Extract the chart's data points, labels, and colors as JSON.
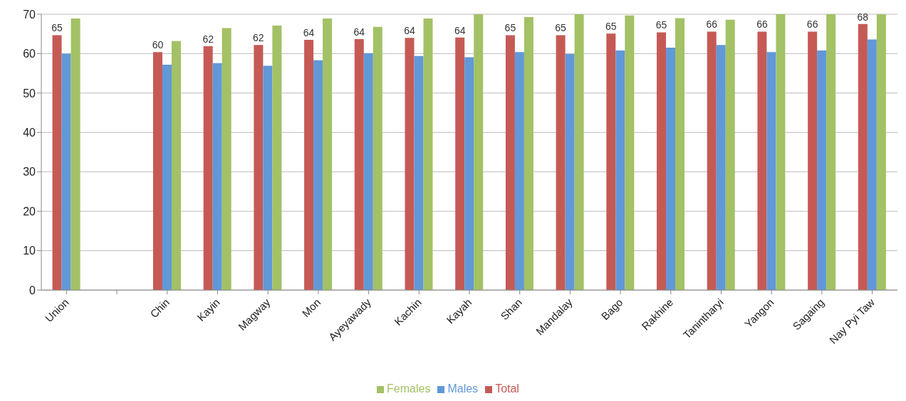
{
  "chart_data": {
    "type": "bar",
    "categories": [
      "Union",
      null,
      "Chin",
      "Kayin",
      "Magway",
      "Mon",
      "Ayeyawady",
      "Kachin",
      "Kayah",
      "Shan",
      "Mandalay",
      "Bago",
      "Rakhine",
      "Tanintharyi",
      "Yangon",
      "Sagaing",
      "Nay Pyi Taw"
    ],
    "series": [
      {
        "name": "Total",
        "color": "#c55a55",
        "values": [
          64.7,
          null,
          60.4,
          61.9,
          62.2,
          63.5,
          63.7,
          64.0,
          64.1,
          64.7,
          64.7,
          65.1,
          65.4,
          65.6,
          65.6,
          65.6,
          67.5
        ],
        "value_labels": [
          "65",
          null,
          "60",
          "62",
          "62",
          "64",
          "64",
          "64",
          "64",
          "65",
          "65",
          "65",
          "65",
          "66",
          "66",
          "66",
          "68"
        ]
      },
      {
        "name": "Males",
        "color": "#6198d8",
        "values": [
          60.0,
          null,
          57.2,
          57.6,
          56.9,
          58.3,
          60.1,
          59.4,
          59.1,
          60.4,
          59.9,
          60.8,
          61.5,
          62.2,
          60.4,
          60.8,
          63.6
        ]
      },
      {
        "name": "Females",
        "color": "#a3c165",
        "values": [
          68.9,
          null,
          63.2,
          66.5,
          67.1,
          68.9,
          66.8,
          68.9,
          70,
          69.3,
          70,
          69.7,
          69.0,
          68.6,
          70,
          70,
          70
        ]
      }
    ],
    "ylim": [
      0,
      70
    ],
    "yticks": [
      0,
      10,
      20,
      30,
      40,
      50,
      60,
      70
    ],
    "grid": "y",
    "legend": "bottom"
  }
}
